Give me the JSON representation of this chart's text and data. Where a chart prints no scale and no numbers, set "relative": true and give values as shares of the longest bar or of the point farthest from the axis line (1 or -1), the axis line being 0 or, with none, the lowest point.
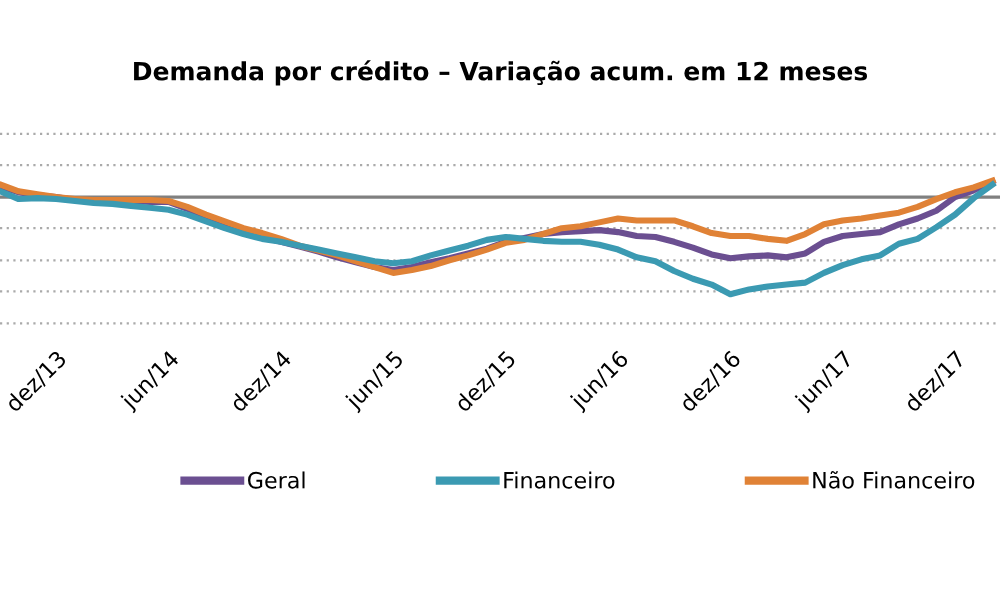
{
  "chart_data": {
    "type": "line",
    "title": "Demanda por crédito – Variação acum. em 12 meses",
    "relative": true,
    "legend": "bottom",
    "ref_lines": [
      {
        "axis": "y",
        "value": 0.65,
        "color": "#aaaaaa",
        "line_style": "dotted"
      },
      {
        "axis": "y",
        "value": 0.33,
        "color": "#aaaaaa",
        "line_style": "dotted"
      },
      {
        "axis": "y",
        "value": -0.32,
        "color": "#aaaaaa",
        "line_style": "dotted"
      },
      {
        "axis": "y",
        "value": -0.65,
        "color": "#aaaaaa",
        "line_style": "dotted"
      },
      {
        "axis": "y",
        "value": -0.97,
        "color": "#aaaaaa",
        "line_style": "dotted"
      },
      {
        "axis": "y",
        "value": -1.3,
        "color": "#aaaaaa",
        "line_style": "dotted"
      }
    ],
    "marker": "none",
    "line_style": "solid",
    "categories": [
      null,
      null,
      null,
      "dez/13",
      null,
      null,
      null,
      null,
      null,
      "jun/14",
      null,
      null,
      null,
      null,
      null,
      "dez/14",
      null,
      null,
      null,
      null,
      null,
      "jun/15",
      null,
      null,
      null,
      null,
      null,
      "dez/15",
      null,
      null,
      null,
      null,
      null,
      "jun/16",
      null,
      null,
      null,
      null,
      null,
      "dez/16",
      null,
      null,
      null,
      null,
      null,
      "jun/17",
      null,
      null,
      null,
      null,
      null,
      "dez/17",
      null,
      null
    ],
    "series": [
      {
        "name": "Geral",
        "color": "#6b4f91",
        "values": [
          0.11,
          0.05,
          0.02,
          0,
          -0.03,
          -0.03,
          -0.04,
          -0.04,
          -0.05,
          -0.05,
          -0.12,
          -0.2,
          -0.28,
          -0.35,
          -0.41,
          -0.46,
          -0.51,
          -0.56,
          -0.62,
          -0.67,
          -0.72,
          -0.75,
          -0.72,
          -0.67,
          -0.63,
          -0.58,
          -0.53,
          -0.46,
          -0.42,
          -0.38,
          -0.36,
          -0.35,
          -0.34,
          -0.36,
          -0.4,
          -0.41,
          -0.46,
          -0.52,
          -0.59,
          -0.63,
          -0.61,
          -0.6,
          -0.62,
          -0.58,
          -0.46,
          -0.4,
          -0.38,
          -0.36,
          -0.28,
          -0.22,
          -0.14,
          0,
          0.07,
          0.16
        ]
      },
      {
        "name": "Financeiro",
        "color": "#3b9ab2",
        "values": [
          0.06,
          -0.02,
          -0.01,
          -0.02,
          -0.04,
          -0.06,
          -0.07,
          -0.09,
          -0.11,
          -0.13,
          -0.18,
          -0.25,
          -0.32,
          -0.38,
          -0.43,
          -0.46,
          -0.5,
          -0.54,
          -0.58,
          -0.62,
          -0.66,
          -0.68,
          -0.66,
          -0.6,
          -0.55,
          -0.5,
          -0.44,
          -0.41,
          -0.43,
          -0.45,
          -0.46,
          -0.46,
          -0.49,
          -0.54,
          -0.62,
          -0.66,
          -0.76,
          -0.84,
          -0.9,
          -1,
          -0.95,
          -0.92,
          -0.9,
          -0.88,
          -0.78,
          -0.7,
          -0.64,
          -0.6,
          -0.48,
          -0.43,
          -0.31,
          -0.18,
          -0.01,
          0.13
        ]
      },
      {
        "name": "Não Financeiro",
        "color": "#e08236",
        "values": [
          0.13,
          0.06,
          0.03,
          0,
          -0.02,
          -0.03,
          -0.03,
          -0.03,
          -0.03,
          -0.04,
          -0.1,
          -0.18,
          -0.25,
          -0.32,
          -0.37,
          -0.43,
          -0.5,
          -0.55,
          -0.6,
          -0.66,
          -0.72,
          -0.78,
          -0.75,
          -0.71,
          -0.65,
          -0.6,
          -0.54,
          -0.47,
          -0.44,
          -0.38,
          -0.32,
          -0.3,
          -0.26,
          -0.22,
          -0.24,
          -0.24,
          -0.24,
          -0.3,
          -0.37,
          -0.4,
          -0.4,
          -0.43,
          -0.45,
          -0.38,
          -0.28,
          -0.24,
          -0.22,
          -0.19,
          -0.16,
          -0.1,
          -0.02,
          0.05,
          0.1,
          0.17
        ]
      }
    ]
  }
}
